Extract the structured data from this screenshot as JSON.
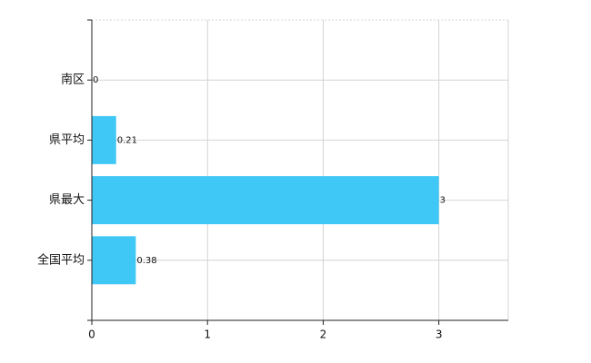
{
  "chart_data": {
    "type": "barh",
    "categories": [
      "南区",
      "県平均",
      "県最大",
      "全国平均"
    ],
    "values": [
      0,
      0.21,
      3,
      0.38
    ],
    "color": "#3fc7f6",
    "xlim": [
      0,
      3.6
    ],
    "xticks": [
      0,
      1,
      2,
      3
    ],
    "grid": true
  }
}
